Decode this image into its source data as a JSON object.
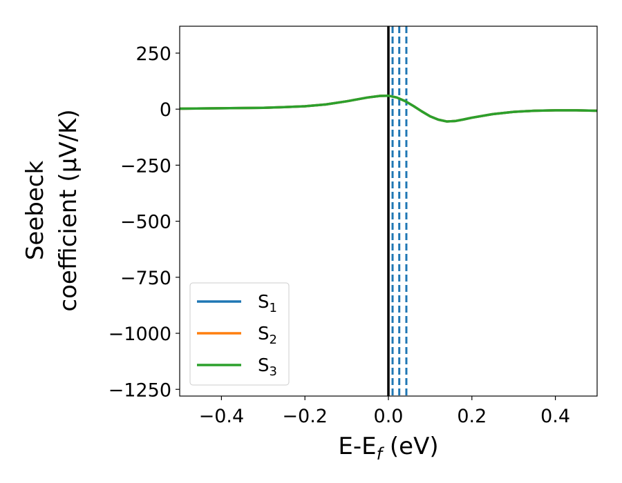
{
  "chart_data": {
    "type": "line",
    "xlabel": "E-E_f (eV)",
    "ylabel_lines": [
      "Seebeck",
      "coefficient  (μV/K)"
    ],
    "xlim": [
      -0.5,
      0.5
    ],
    "ylim": [
      -1280,
      370
    ],
    "xticks": [
      -0.4,
      -0.2,
      0.0,
      0.2,
      0.4
    ],
    "xtick_labels": [
      "−0.4",
      "−0.2",
      "0.0",
      "0.2",
      "0.4"
    ],
    "yticks": [
      250,
      0,
      -250,
      -500,
      -750,
      -1000,
      -1250
    ],
    "ytick_labels": [
      "250",
      "0",
      "−250",
      "−500",
      "−750",
      "−1000",
      "−1250"
    ],
    "grid": false,
    "legend_position": "lower-left",
    "fermi_line_x": 0.0,
    "fermi_line_color": "#000000",
    "dashed_lines": {
      "x": [
        0.01,
        0.026,
        0.043
      ],
      "color": "#1f77b4"
    },
    "x": [
      -0.5,
      -0.4,
      -0.3,
      -0.25,
      -0.2,
      -0.15,
      -0.1,
      -0.05,
      -0.02,
      0.0,
      0.02,
      0.04,
      0.06,
      0.08,
      0.1,
      0.12,
      0.14,
      0.16,
      0.18,
      0.2,
      0.25,
      0.3,
      0.35,
      0.4,
      0.45,
      0.5
    ],
    "series": [
      {
        "name": "S_1",
        "label_main": "S",
        "label_sub": "1",
        "color": "#1f77b4",
        "values": [
          2,
          4,
          6,
          9,
          13,
          21,
          35,
          52,
          59,
          60,
          52,
          36,
          14,
          -10,
          -32,
          -47,
          -55,
          -53,
          -46,
          -38,
          -22,
          -12,
          -7,
          -5,
          -5,
          -7
        ]
      },
      {
        "name": "S_2",
        "label_main": "S",
        "label_sub": "2",
        "color": "#ff7f0e",
        "values": [
          2,
          4,
          6,
          9,
          13,
          21,
          35,
          52,
          59,
          60,
          52,
          36,
          14,
          -10,
          -32,
          -47,
          -55,
          -53,
          -46,
          -38,
          -22,
          -12,
          -7,
          -5,
          -5,
          -7
        ]
      },
      {
        "name": "S_3",
        "label_main": "S",
        "label_sub": "3",
        "color": "#2ca02c",
        "values": [
          2,
          4,
          6,
          9,
          13,
          21,
          35,
          52,
          59,
          60,
          52,
          36,
          14,
          -10,
          -32,
          -47,
          -55,
          -53,
          -46,
          -38,
          -22,
          -12,
          -7,
          -5,
          -5,
          -7
        ]
      }
    ]
  }
}
